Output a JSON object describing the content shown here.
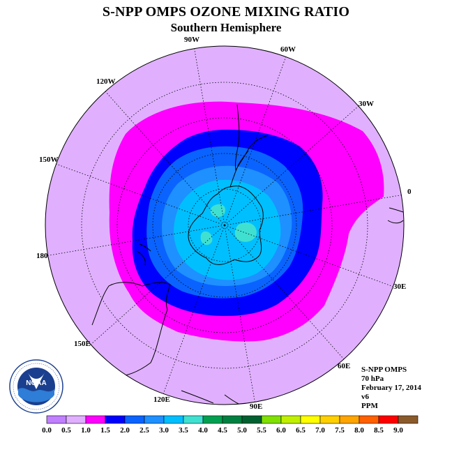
{
  "header": {
    "title": "S-NPP OMPS OZONE MIXING RATIO",
    "subtitle": "Southern Hemisphere"
  },
  "map": {
    "projection": "south-polar-stereographic",
    "longitude_labels": [
      "0",
      "30E",
      "60E",
      "90E",
      "120E",
      "150E",
      "180",
      "150W",
      "120W",
      "90W",
      "60W",
      "30W"
    ],
    "colors": {
      "background": "#e0b0ff",
      "band_1_0_1_5": "#ff00ff",
      "band_1_5_2_0": "#0000ff",
      "band_2_0_2_5": "#0a63ff",
      "band_2_5_3_0": "#1e90ff",
      "band_3_0_3_5": "#00bfff",
      "band_3_5_4_0": "#40e0d0",
      "coastline": "#000000",
      "graticule": "#000000"
    }
  },
  "info": {
    "instrument": "S-NPP OMPS",
    "level": "70 hPa",
    "date": "February 17, 2014",
    "version": "v6",
    "units": "PPM"
  },
  "logo": {
    "text": "NOAA",
    "ring_text": "NATIONAL OCEANIC AND ATMOSPHERIC ADMINISTRATION · U.S. DEPARTMENT OF COMMERCE"
  },
  "colorbar": {
    "ticks": [
      "0.0",
      "0.5",
      "1.0",
      "1.5",
      "2.0",
      "2.5",
      "3.0",
      "3.5",
      "4.0",
      "4.5",
      "5.0",
      "5.5",
      "6.0",
      "6.5",
      "7.0",
      "7.5",
      "8.0",
      "8.5",
      "9.0"
    ],
    "colors": [
      "#c080ff",
      "#e0b0ff",
      "#ff00ff",
      "#0000ff",
      "#0a63ff",
      "#1e90ff",
      "#00bfff",
      "#40e0d0",
      "#00a050",
      "#008040",
      "#006030",
      "#80e000",
      "#c0f000",
      "#ffff00",
      "#ffd000",
      "#ffa500",
      "#ff6000",
      "#ff0000",
      "#8b5a2b"
    ]
  }
}
